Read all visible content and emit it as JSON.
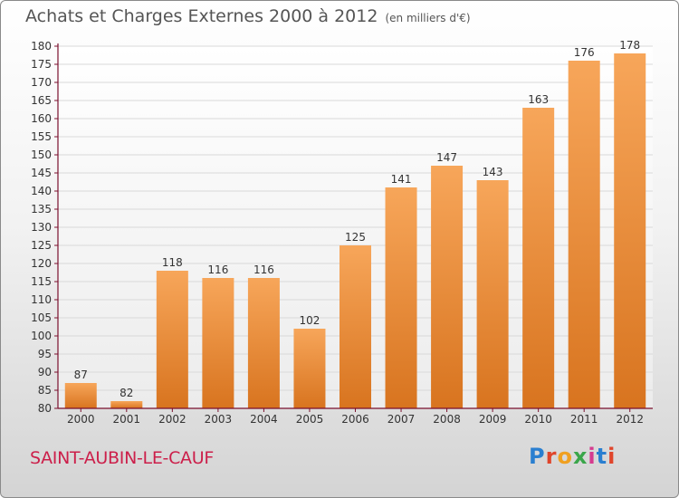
{
  "header": {
    "title": "Achats et Charges Externes 2000 à 2012",
    "unit": "(en milliers d'€)"
  },
  "footer": {
    "place": "SAINT-AUBIN-LE-CAUF",
    "logo_text": "Proxiti",
    "logo_colors": [
      "#2a7fd0",
      "#e0452b",
      "#f0a020",
      "#3aa64a",
      "#d63b8f",
      "#2a7fd0",
      "#e0452b"
    ]
  },
  "colors": {
    "bar_light": "#f7a65a",
    "bar_dark": "#d8741f",
    "axis": "#7a0f2d",
    "grid": "#d9d9d9",
    "text": "#333333"
  },
  "chart_data": {
    "type": "bar",
    "title": "Achats et Charges Externes 2000 à 2012",
    "unit_label": "(en milliers d'€)",
    "categories": [
      "2000",
      "2001",
      "2002",
      "2003",
      "2004",
      "2005",
      "2006",
      "2007",
      "2008",
      "2009",
      "2010",
      "2011",
      "2012"
    ],
    "values": [
      87,
      82,
      118,
      116,
      116,
      102,
      125,
      141,
      147,
      143,
      163,
      176,
      178
    ],
    "ylim": [
      80,
      180
    ],
    "yticks": [
      80,
      85,
      90,
      95,
      100,
      105,
      110,
      115,
      120,
      125,
      130,
      135,
      140,
      145,
      150,
      155,
      160,
      165,
      170,
      175,
      180
    ],
    "grid": true,
    "data_labels": true
  }
}
